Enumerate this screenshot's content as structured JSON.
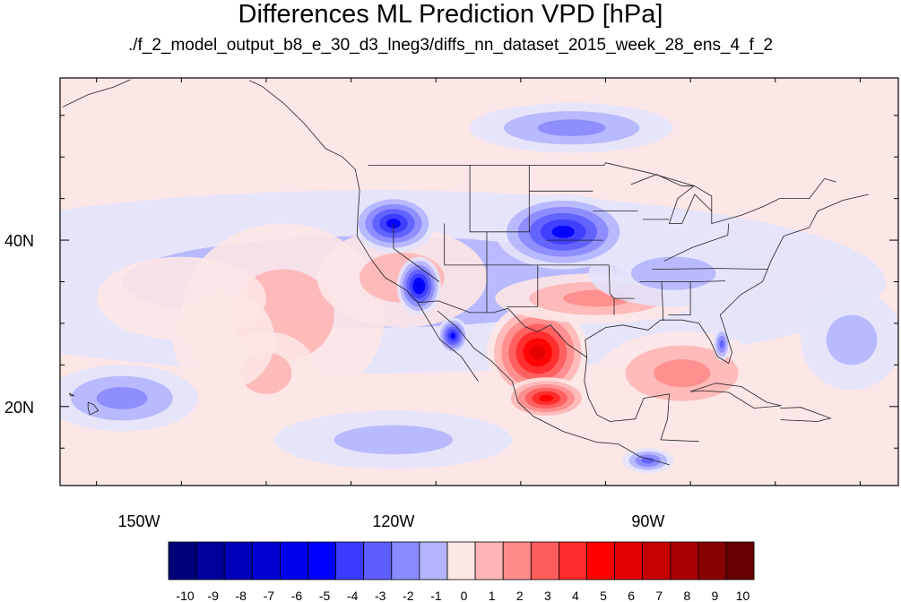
{
  "figure": {
    "title": "Differences ML Prediction VPD [hPa]",
    "subtitle": "./f_2_model_output_b8_e_30_d3_lneg3/diffs_nn_dataset_2015_week_28_ens_4_f_2"
  },
  "axes": {
    "x_ticks": [
      {
        "value": -150,
        "label": "150W"
      },
      {
        "value": -120,
        "label": "120W"
      },
      {
        "value": -90,
        "label": "90W"
      }
    ],
    "y_ticks": [
      {
        "value": 40,
        "label": "40N"
      },
      {
        "value": 20,
        "label": "20N"
      }
    ],
    "lon_range": [
      -159.3,
      -60.5
    ],
    "lat_range": [
      10.5,
      59.5
    ]
  },
  "colorbar": {
    "labels": [
      "-10",
      "-9",
      "-8",
      "-7",
      "-6",
      "-5",
      "-4",
      "-3",
      "-2",
      "-1",
      "0",
      "1",
      "2",
      "3",
      "4",
      "5",
      "6",
      "7",
      "8",
      "9",
      "10"
    ],
    "colors": [
      "#00007a",
      "#00009c",
      "#0000b8",
      "#0000d4",
      "#0000f0",
      "#0000ff",
      "#3b3bff",
      "#5e5eff",
      "#8a8aff",
      "#b4b4ff",
      "#e3e3fb",
      "#fde6e6",
      "#ffb5b5",
      "#ff8c8c",
      "#ff5c5c",
      "#ff2a2a",
      "#ff0000",
      "#e20000",
      "#c60000",
      "#a80000",
      "#880000",
      "#680000"
    ]
  },
  "chart_data": {
    "type": "heatmap",
    "title": "Differences ML Prediction VPD [hPa]",
    "subtitle": "./f_2_model_output_b8_e_30_d3_lneg3/diffs_nn_dataset_2015_week_28_ens_4_f_2",
    "units": "hPa",
    "levels": [
      -10,
      -9,
      -8,
      -7,
      -6,
      -5,
      -4,
      -3,
      -2,
      -1,
      0,
      1,
      2,
      3,
      4,
      5,
      6,
      7,
      8,
      9,
      10
    ],
    "background_value": 0.2,
    "regions": [
      {
        "lon": -122,
        "lat": 35,
        "value": -1.5,
        "rlon": 60,
        "rlat": 11,
        "kind": "blob"
      },
      {
        "lon": -133,
        "lat": 31,
        "value": 1.2,
        "rlon": 12,
        "rlat": 11,
        "kind": "blob"
      },
      {
        "lon": -119,
        "lat": 35.5,
        "value": 1.8,
        "rlon": 10,
        "rlat": 6,
        "kind": "blob"
      },
      {
        "lon": -135,
        "lat": 24,
        "value": 1.6,
        "rlon": 6,
        "rlat": 5,
        "kind": "blob"
      },
      {
        "lon": -145,
        "lat": 33,
        "value": 1.0,
        "rlon": 10,
        "rlat": 5,
        "kind": "blob"
      },
      {
        "lon": -140,
        "lat": 28,
        "value": 1.0,
        "rlon": 6,
        "rlat": 6,
        "kind": "blob"
      },
      {
        "lon": -152,
        "lat": 21,
        "value": -2.2,
        "rlon": 9,
        "rlat": 4,
        "kind": "blob"
      },
      {
        "lon": -120,
        "lat": 16,
        "value": -1.8,
        "rlon": 14,
        "rlat": 3.5,
        "kind": "blob"
      },
      {
        "lon": -120,
        "lat": 42,
        "value": -5.5,
        "rlon": 5,
        "rlat": 3.5,
        "kind": "blob"
      },
      {
        "lon": -117,
        "lat": 34.5,
        "value": -6.5,
        "rlon": 2.6,
        "rlat": 3.5,
        "kind": "blob"
      },
      {
        "lon": -113,
        "lat": 28.5,
        "value": -6,
        "rlon": 1.8,
        "rlat": 2.2,
        "kind": "blob"
      },
      {
        "lon": -100,
        "lat": 41,
        "value": -6,
        "rlon": 8,
        "rlat": 4.5,
        "kind": "blob"
      },
      {
        "lon": -99,
        "lat": 53.5,
        "value": -2.5,
        "rlon": 12,
        "rlat": 3,
        "kind": "blob"
      },
      {
        "lon": -103,
        "lat": 26.5,
        "value": 7,
        "rlon": 6,
        "rlat": 6,
        "kind": "blob"
      },
      {
        "lon": -102,
        "lat": 21,
        "value": 6,
        "rlon": 5,
        "rlat": 2.5,
        "kind": "blob"
      },
      {
        "lon": -96,
        "lat": 33,
        "value": 2.8,
        "rlon": 12,
        "rlat": 3,
        "kind": "blob"
      },
      {
        "lon": -86,
        "lat": 24,
        "value": 2.2,
        "rlon": 10,
        "rlat": 5,
        "kind": "blob"
      },
      {
        "lon": -81.3,
        "lat": 27.5,
        "value": -3.5,
        "rlon": 1,
        "rlat": 2,
        "kind": "blob"
      },
      {
        "lon": -87,
        "lat": 36,
        "value": -1.5,
        "rlon": 10,
        "rlat": 4,
        "kind": "blob"
      },
      {
        "lon": -66,
        "lat": 28,
        "value": -1.8,
        "rlon": 6,
        "rlat": 6,
        "kind": "blob"
      },
      {
        "lon": -90,
        "lat": 13.5,
        "value": -4,
        "rlon": 3,
        "rlat": 1.5,
        "kind": "blob"
      }
    ]
  }
}
